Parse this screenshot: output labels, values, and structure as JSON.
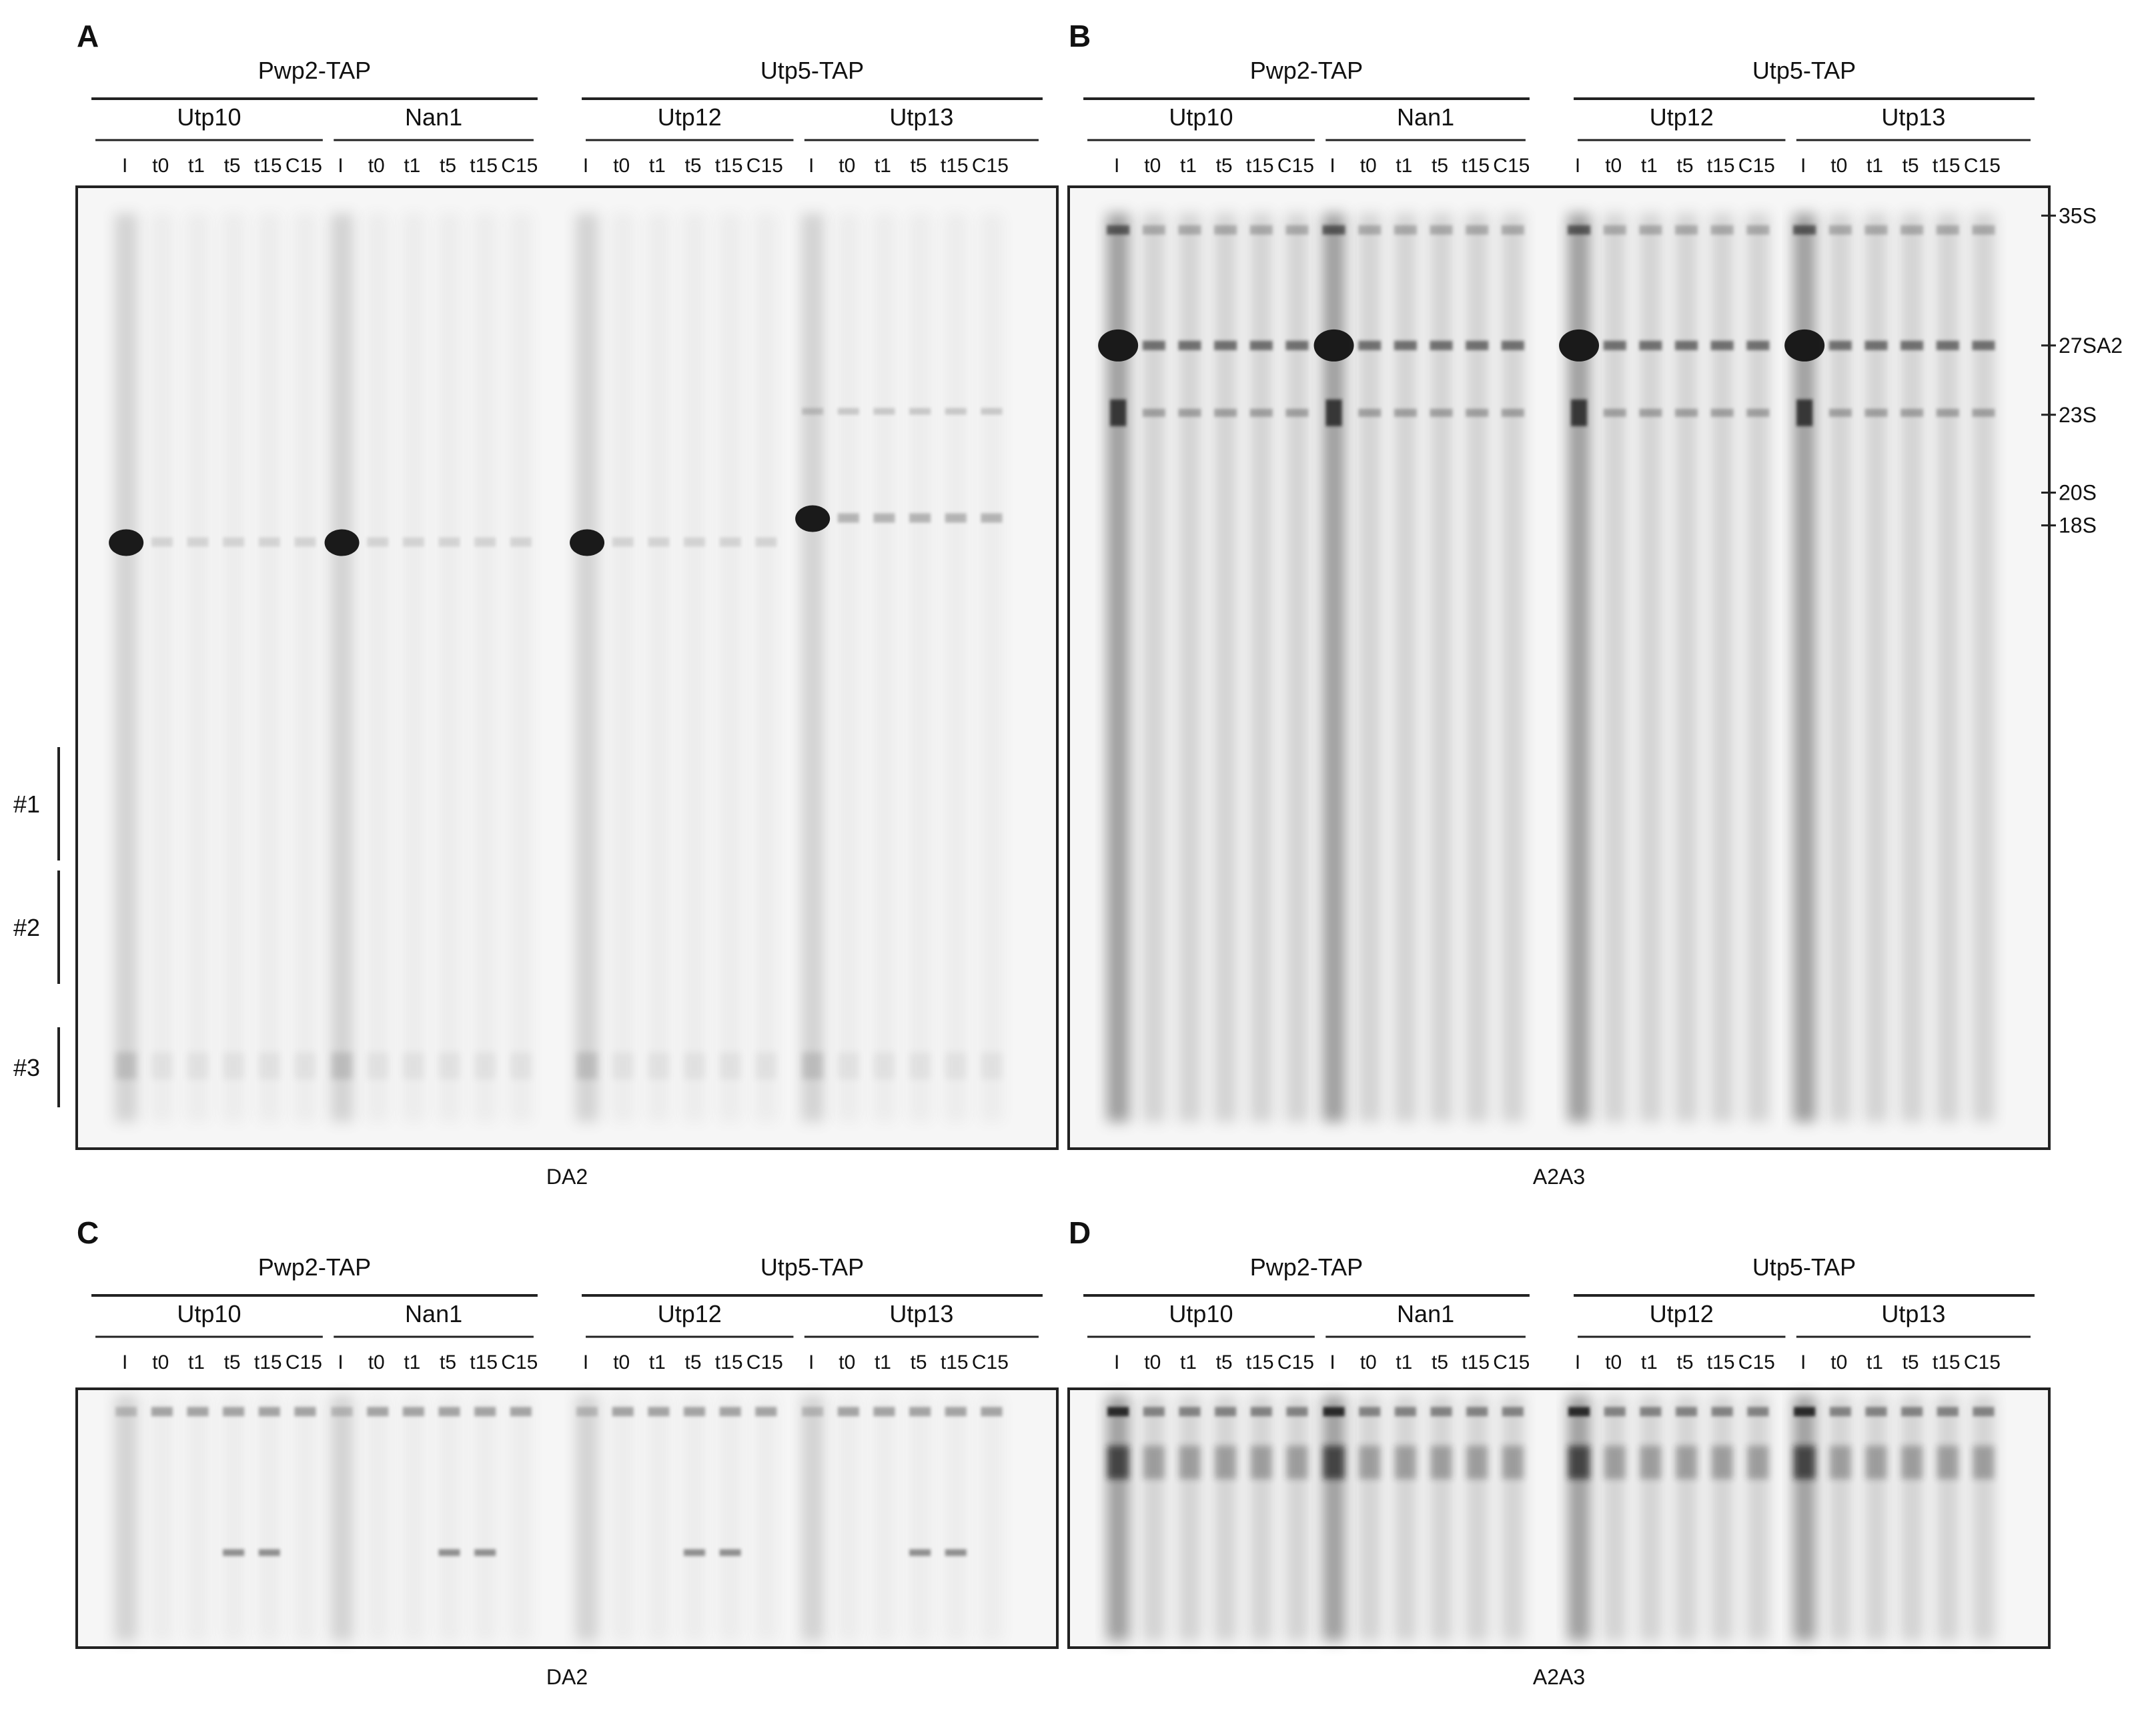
{
  "panels": [
    {
      "letter": "A",
      "blot": "DA2",
      "size": "tall"
    },
    {
      "letter": "B",
      "blot": "A2A3",
      "size": "tall"
    },
    {
      "letter": "C",
      "blot": "DA2",
      "size": "short"
    },
    {
      "letter": "D",
      "blot": "A2A3",
      "size": "short"
    }
  ],
  "groups": [
    {
      "bait": "Pwp2-TAP",
      "targets": [
        "Utp10",
        "Nan1"
      ]
    },
    {
      "bait": "Utp5-TAP",
      "targets": [
        "Utp12",
        "Utp13"
      ]
    }
  ],
  "lanes": [
    "I",
    "t0",
    "t1",
    "t5",
    "t15",
    "C15"
  ],
  "markers": [
    "35S",
    "27SA2",
    "23S",
    "20S",
    "18S"
  ],
  "regions": [
    "#1",
    "#2",
    "#3"
  ],
  "colors": {
    "band": "#1a1a1a",
    "smear": "#555555",
    "frame": "#222222",
    "background": "#ffffff"
  }
}
